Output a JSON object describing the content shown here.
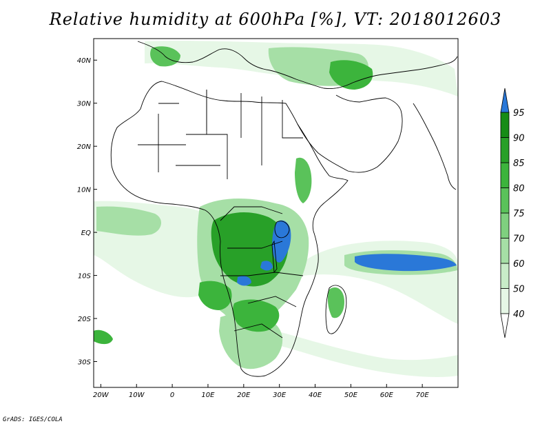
{
  "title": "Relative humidity at 600hPa [%], VT: 2018012603",
  "footer": "GrADS: IGES/COLA",
  "map": {
    "lon_range": [
      -22,
      80
    ],
    "lat_range": [
      -36,
      45
    ],
    "lon_ticks": [
      {
        "value": -20,
        "label": "20W"
      },
      {
        "value": -10,
        "label": "10W"
      },
      {
        "value": 0,
        "label": "0"
      },
      {
        "value": 10,
        "label": "10E"
      },
      {
        "value": 20,
        "label": "20E"
      },
      {
        "value": 30,
        "label": "30E"
      },
      {
        "value": 40,
        "label": "40E"
      },
      {
        "value": 50,
        "label": "50E"
      },
      {
        "value": 60,
        "label": "60E"
      },
      {
        "value": 70,
        "label": "70E"
      }
    ],
    "lat_ticks": [
      {
        "value": 40,
        "label": "40N"
      },
      {
        "value": 30,
        "label": "30N"
      },
      {
        "value": 20,
        "label": "20N"
      },
      {
        "value": 10,
        "label": "10N"
      },
      {
        "value": 0,
        "label": "EQ"
      },
      {
        "value": -10,
        "label": "10S"
      },
      {
        "value": -20,
        "label": "20S"
      },
      {
        "value": -30,
        "label": "30S"
      }
    ]
  },
  "colorbar": {
    "levels": [
      "40",
      "50",
      "60",
      "70",
      "75",
      "80",
      "85",
      "90",
      "95"
    ],
    "colors": [
      "#e6f7e6",
      "#c8ecc8",
      "#a6dfa6",
      "#7fd07f",
      "#5ac25a",
      "#3cb43c",
      "#28a028",
      "#168c16",
      "#1e78e0"
    ],
    "over_color": "#2a78d8"
  },
  "colors": {
    "coast": "#000000",
    "rh_40": "#e6f7e6",
    "rh_60": "#a6dfa6",
    "rh_75": "#5ac25a",
    "rh_85": "#28a028",
    "rh_95": "#2a78d8"
  }
}
